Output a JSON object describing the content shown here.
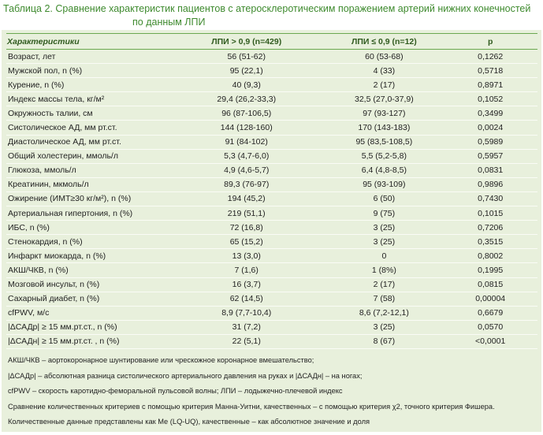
{
  "header": {
    "title": [
      "Таблица 2. Сравнение характеристик пациентов с атеросклеротическим поражением артерий нижних конечностей",
      "по данным ЛПИ"
    ]
  },
  "table": {
    "columns": [
      "Характеристики",
      "ЛПИ > 0,9 (n=429)",
      "ЛПИ ≤ 0,9 (n=12)",
      "р"
    ],
    "rows": [
      [
        "Возраст, лет",
        "56 (51-62)",
        "60 (53-68)",
        "0,1262"
      ],
      [
        "Мужской пол, n (%)",
        "95 (22,1)",
        "4 (33)",
        "0,5718"
      ],
      [
        "Курение, n (%)",
        "40 (9,3)",
        "2 (17)",
        "0,8971"
      ],
      [
        "Индекс массы тела, кг/м²",
        "29,4 (26,2-33,3)",
        "32,5 (27,0-37,9)",
        "0,1052"
      ],
      [
        "Окружность талии, см",
        "96 (87-106,5)",
        "97 (93-127)",
        "0,3499"
      ],
      [
        "Систолическое АД, мм рт.ст.",
        "144 (128-160)",
        "170 (143-183)",
        "0,0024"
      ],
      [
        "Диастолическое АД, мм рт.ст.",
        "91 (84-102)",
        "95 (83,5-108,5)",
        "0,5989"
      ],
      [
        "Общий холестерин, ммоль/л",
        "5,3 (4,7-6,0)",
        "5,5 (5,2-5,8)",
        "0,5957"
      ],
      [
        "Глюкоза, ммоль/л",
        "4,9 (4,6-5,7)",
        "6,4 (4,8-8,5)",
        "0,0831"
      ],
      [
        "Креатинин, мкмоль/л",
        "89,3 (76-97)",
        "95 (93-109)",
        "0,9896"
      ],
      [
        "Ожирение (ИМТ≥30 кг/м²), n (%)",
        "194 (45,2)",
        "6 (50)",
        "0,7430"
      ],
      [
        "Артериальная гипертония, n (%)",
        "219 (51,1)",
        "9 (75)",
        "0,1015"
      ],
      [
        "ИБС, n (%)",
        "72 (16,8)",
        "3 (25)",
        "0,7206"
      ],
      [
        "Стенокардия, n (%)",
        "65 (15,2)",
        "3 (25)",
        "0,3515"
      ],
      [
        "Инфаркт миокарда, n (%)",
        "13 (3,0)",
        "0",
        "0,8002"
      ],
      [
        "АКШ/ЧКВ, n (%)",
        "7 (1,6)",
        "1 (8%)",
        "0,1995"
      ],
      [
        "Мозговой инсульт, n (%)",
        "16 (3,7)",
        "2 (17)",
        "0,0815"
      ],
      [
        "Сахарный диабет, n (%)",
        "62 (14,5)",
        "7 (58)",
        "0,00004"
      ],
      [
        "cfPWV, м/с",
        "8,9 (7,7-10,4)",
        "8,6 (7,2-12,1)",
        "0,6679"
      ],
      [
        "|ΔСАДр| ≥ 15 мм.рт.ст., n (%)",
        "31 (7,2)",
        "3 (25)",
        "0,0570"
      ],
      [
        "|ΔСАДн| ≥ 15 мм.рт.ст. , n (%)",
        "22 (5,1)",
        "8 (67)",
        "<0,0001"
      ]
    ]
  },
  "notes": [
    "АКШ/ЧКВ – аортокоронарное шунтирование или чрескожное коронарное вмешательство;",
    "|ΔСАДр| – абсолютная разница систолического артериального давления на руках и |ΔСАДн| – на ногах;",
    "cfPWV – скорость каротидно-феморальной пульсовой волны; ЛПИ – лодыжечно-плечевой индекс",
    "Сравнение количественных критериев с помощью критерия Манна-Уитни, качественных – с помощью критерия χ2, точного критерия Фишера.",
    "Количественные данные представлены как Me (LQ-UQ), качественные – как абсолютное значение и доля"
  ]
}
